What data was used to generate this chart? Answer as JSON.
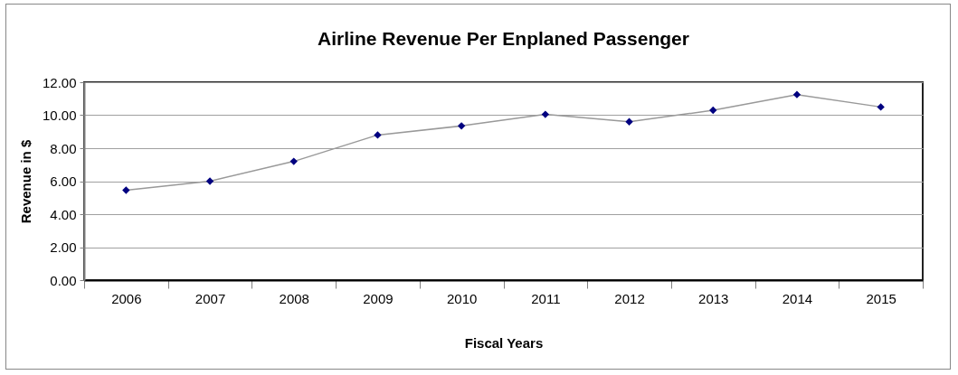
{
  "chart_data": {
    "type": "line",
    "title": "Airline Revenue Per Enplaned Passenger",
    "xlabel": "Fiscal Years",
    "ylabel": "Revenue in $",
    "categories": [
      "2006",
      "2007",
      "2008",
      "2009",
      "2010",
      "2011",
      "2012",
      "2013",
      "2014",
      "2015"
    ],
    "series": [
      {
        "color": "#000080",
        "values": [
          5.45,
          6.0,
          7.2,
          8.8,
          9.35,
          10.05,
          9.6,
          10.3,
          11.25,
          10.5
        ]
      }
    ],
    "ylim": [
      0,
      12
    ],
    "yticks": [
      {
        "value": 0,
        "label": "0.00"
      },
      {
        "value": 2,
        "label": "2.00"
      },
      {
        "value": 4,
        "label": "4.00"
      },
      {
        "value": 6,
        "label": "6.00"
      },
      {
        "value": 8,
        "label": "8.00"
      },
      {
        "value": 10,
        "label": "10.00"
      },
      {
        "value": 12,
        "label": "12.00"
      }
    ],
    "grid": "y",
    "marker": "diamond",
    "line_style": "solid"
  }
}
